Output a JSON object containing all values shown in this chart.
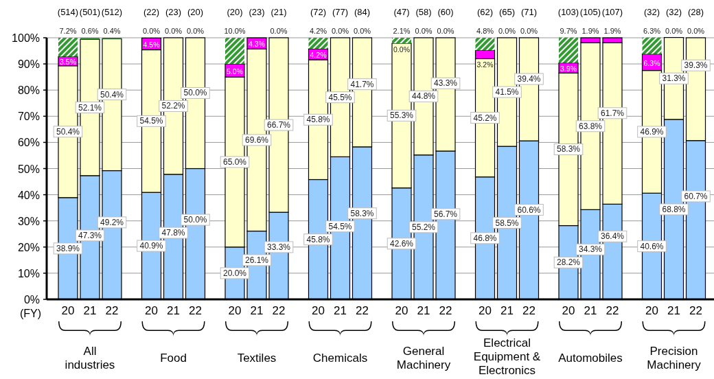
{
  "chart_data": {
    "type": "bar",
    "stacked": true,
    "xlabel": "(FY)",
    "categories": [
      "20",
      "21",
      "22",
      "20",
      "21",
      "22",
      "20",
      "21",
      "22",
      "20",
      "21",
      "22",
      "20",
      "21",
      "22",
      "20",
      "21",
      "22",
      "20",
      "21",
      "22",
      "20",
      "21",
      "22"
    ],
    "series": [
      {
        "color": "#99ccff",
        "values": [
          38.9,
          47.3,
          49.2,
          40.9,
          47.8,
          50.0,
          20.0,
          26.1,
          33.3,
          45.8,
          54.5,
          58.3,
          42.6,
          55.2,
          56.7,
          46.8,
          58.5,
          60.6,
          28.2,
          34.3,
          36.4,
          40.6,
          68.8,
          60.7
        ],
        "value_labels": [
          "38.9%",
          "47.3%",
          "49.2%",
          "40.9%",
          "47.8%",
          "50.0%",
          "20.0%",
          "26.1%",
          "33.3%",
          "45.8%",
          "54.5%",
          "58.3%",
          "42.6%",
          "55.2%",
          "56.7%",
          "46.8%",
          "58.5%",
          "60.6%",
          "28.2%",
          "34.3%",
          "36.4%",
          "40.6%",
          "68.8%",
          "60.7%"
        ]
      },
      {
        "color": "#ffffcc",
        "values": [
          50.4,
          52.1,
          50.4,
          54.5,
          52.2,
          50.0,
          65.0,
          69.6,
          66.7,
          45.8,
          45.5,
          41.7,
          55.3,
          44.8,
          43.3,
          45.2,
          41.5,
          39.4,
          58.3,
          63.8,
          61.7,
          46.9,
          31.3,
          39.3
        ],
        "value_labels": [
          "50.4%",
          "52.1%",
          "50.4%",
          "54.5%",
          "52.2%",
          "50.0%",
          "65.0%",
          "69.6%",
          "66.7%",
          "45.8%",
          "45.5%",
          "41.7%",
          "55.3%",
          "44.8%",
          "43.3%",
          "45.2%",
          "41.5%",
          "39.4%",
          "58.3%",
          "63.8%",
          "61.7%",
          "46.9%",
          "31.3%",
          "39.3%"
        ]
      },
      {
        "color": "#ff00ff",
        "values": [
          3.5,
          0,
          0,
          4.5,
          0,
          0,
          5.0,
          4.3,
          0,
          4.2,
          0,
          0,
          0.0,
          0,
          0,
          3.2,
          0,
          0,
          3.9,
          1.9,
          1.9,
          6.3,
          0,
          0
        ],
        "value_labels": [
          "3.5%",
          null,
          null,
          "4.5%",
          null,
          null,
          "5.0%",
          "4.3%",
          null,
          "4.2%",
          null,
          null,
          "0.0%",
          null,
          null,
          "3.2%",
          null,
          null,
          "3.9%",
          "1.9%",
          "1.9%",
          "6.3%",
          null,
          null
        ]
      },
      {
        "color": "#339933",
        "values": [
          7.2,
          0.6,
          0.4,
          0.0,
          0.0,
          0.0,
          10.0,
          null,
          0.0,
          4.2,
          0.0,
          0.0,
          2.1,
          0.0,
          0.0,
          4.8,
          0.0,
          0.0,
          9.7,
          null,
          null,
          6.3,
          0.0,
          0.0
        ],
        "value_labels": [
          "7.2%",
          "0.6%",
          "0.4%",
          "0.0%",
          "0.0%",
          "0.0%",
          "10.0%",
          null,
          "0.0%",
          "4.2%",
          "0.0%",
          "0.0%",
          "2.1%",
          "0.0%",
          "0.0%",
          "4.8%",
          "0.0%",
          "0.0%",
          "9.7%",
          null,
          null,
          "6.3%",
          "0.0%",
          "0.0%"
        ]
      }
    ],
    "ylim": [
      0,
      100
    ],
    "yticks": [
      {
        "value": 0,
        "label": "0%"
      },
      {
        "value": 10,
        "label": "10%"
      },
      {
        "value": 20,
        "label": "20%"
      },
      {
        "value": 30,
        "label": "30%"
      },
      {
        "value": 40,
        "label": "40%"
      },
      {
        "value": 50,
        "label": "50%"
      },
      {
        "value": 60,
        "label": "60%"
      },
      {
        "value": 70,
        "label": "70%"
      },
      {
        "value": 80,
        "label": "80%"
      },
      {
        "value": 90,
        "label": "90%"
      },
      {
        "value": 100,
        "label": "100%"
      }
    ],
    "grid": "y",
    "annotations": [
      "(514)",
      "(501)",
      "(512)",
      "(22)",
      "(23)",
      "(20)",
      "(20)",
      "(23)",
      "(21)",
      "(72)",
      "(77)",
      "(84)",
      "(47)",
      "(58)",
      "(60)",
      "(62)",
      "(65)",
      "(71)",
      "(103)",
      "(105)",
      "(107)",
      "(32)",
      "(32)",
      "(28)",
      "All industries",
      "Food",
      "Textiles",
      "Chemicals",
      "General Machinery",
      "Electrical Equipment & Electronics",
      "Automobiles",
      "Precision Machinery"
    ]
  }
}
